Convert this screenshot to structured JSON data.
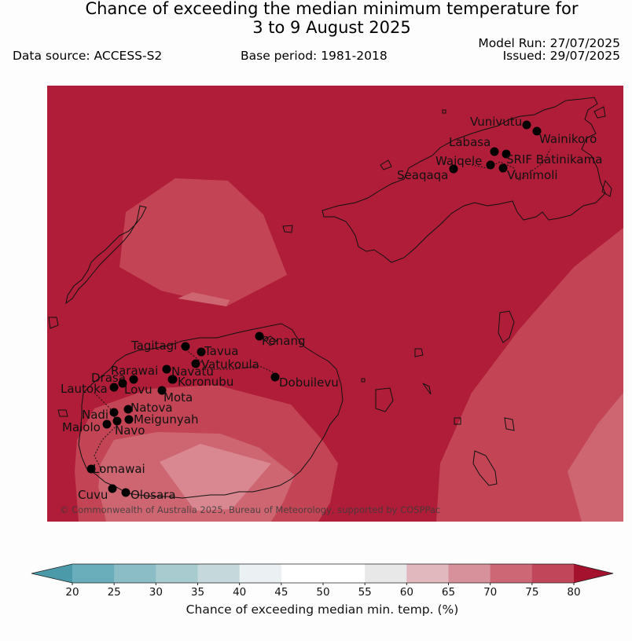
{
  "title": {
    "line1": "Chance of exceeding the median minimum temperature for",
    "line2": "3 to 9 August 2025"
  },
  "meta": {
    "data_source": "Data source: ACCESS-S2",
    "base_period": "Base period: 1981-2018",
    "model_run": "Model Run: 27/07/2025",
    "issued": "Issued: 29/07/2025"
  },
  "copyright": "© Commonwealth of Australia 2025, Bureau of Meteorology, supported by COSPPac",
  "colors": {
    "bg_75_80": "#b01d38",
    "band_70_75": "#c34555",
    "band_65_70": "#ce6672",
    "band_60_65": "#d98891",
    "coast": "#111111",
    "station": "#000000"
  },
  "stations": [
    {
      "name": "Vunivutu"
    },
    {
      "name": "Wainikoro"
    },
    {
      "name": "Labasa"
    },
    {
      "name": "SRIF Batinikama"
    },
    {
      "name": "Waiqele"
    },
    {
      "name": "Vunimoli"
    },
    {
      "name": "Seaqaqa"
    },
    {
      "name": "Penang"
    },
    {
      "name": "Tagitagi"
    },
    {
      "name": "Tavua"
    },
    {
      "name": "Vatukoula"
    },
    {
      "name": "Rarawai"
    },
    {
      "name": "Navatu"
    },
    {
      "name": "Drasa"
    },
    {
      "name": "Koronubu"
    },
    {
      "name": "Lautoka"
    },
    {
      "name": "Lovu"
    },
    {
      "name": "Dobuilevu"
    },
    {
      "name": "Mota"
    },
    {
      "name": "Natova"
    },
    {
      "name": "Nadi"
    },
    {
      "name": "Meigunyah"
    },
    {
      "name": "Malolo"
    },
    {
      "name": "Navo"
    },
    {
      "name": "Lomawai"
    },
    {
      "name": "Cuvu"
    },
    {
      "name": "Olosara"
    }
  ],
  "colorbar": {
    "label": "Chance of exceeding median min. temp. (%)",
    "ticks": [
      "20",
      "25",
      "30",
      "35",
      "40",
      "45",
      "50",
      "55",
      "60",
      "65",
      "70",
      "75",
      "80"
    ],
    "colors": [
      "#6aaebc",
      "#8bbdc7",
      "#a8cbd0",
      "#c5d9dc",
      "#ebf0f2",
      "#ffffff",
      "#ffffff",
      "#e8e8e8",
      "#e0b8be",
      "#d6919a",
      "#cd6775",
      "#c24659"
    ],
    "extend_low_color": "#4a9aa9",
    "extend_high_color": "#a5122e"
  }
}
